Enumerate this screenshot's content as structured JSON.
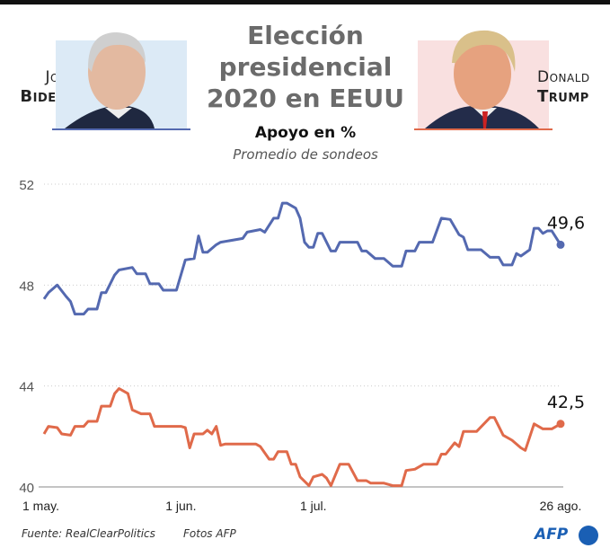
{
  "title_lines": [
    "Elección",
    "presidencial",
    "2020 en EEUU"
  ],
  "subtitle": "Apoyo en %",
  "subtitle2": "Promedio de sondeos",
  "candidates": {
    "biden": {
      "first": "Joe",
      "last": "Biden",
      "color": "#5469b0",
      "photo_bg": "#dceaf6"
    },
    "trump": {
      "first": "Donald",
      "last": "Trump",
      "color": "#e06a4a",
      "photo_bg": "#f9e0e0"
    }
  },
  "footer": {
    "source": "Fuente: RealClearPolitics",
    "photos": "Fotos AFP",
    "logo": "AFP"
  },
  "chart_data": {
    "type": "line",
    "ylim": [
      40,
      52
    ],
    "yticks": [
      "40",
      "44",
      "48",
      "52"
    ],
    "ytick_values": [
      40,
      44,
      48,
      52
    ],
    "xlim": [
      "2020-05-01",
      "2020-08-26"
    ],
    "xticks": [
      {
        "date": "2020-05-01",
        "label": "1 may."
      },
      {
        "date": "2020-06-01",
        "label": "1 jun."
      },
      {
        "date": "2020-07-01",
        "label": "1 jul."
      },
      {
        "date": "2020-08-26",
        "label": "26 ago."
      }
    ],
    "grid": true,
    "series": [
      {
        "key": "biden",
        "color": "#5469b0",
        "end_label": "49,6",
        "points": [
          [
            "2020-05-01",
            47.45
          ],
          [
            "2020-05-02",
            47.7
          ],
          [
            "2020-05-04",
            48.0
          ],
          [
            "2020-05-06",
            47.55
          ],
          [
            "2020-05-07",
            47.35
          ],
          [
            "2020-05-08",
            46.85
          ],
          [
            "2020-05-10",
            46.85
          ],
          [
            "2020-05-11",
            47.05
          ],
          [
            "2020-05-13",
            47.05
          ],
          [
            "2020-05-14",
            47.7
          ],
          [
            "2020-05-15",
            47.7
          ],
          [
            "2020-05-17",
            48.4
          ],
          [
            "2020-05-18",
            48.6
          ],
          [
            "2020-05-21",
            48.7
          ],
          [
            "2020-05-22",
            48.45
          ],
          [
            "2020-05-24",
            48.45
          ],
          [
            "2020-05-25",
            48.05
          ],
          [
            "2020-05-27",
            48.05
          ],
          [
            "2020-05-28",
            47.8
          ],
          [
            "2020-05-31",
            47.8
          ],
          [
            "2020-06-02",
            49.0
          ],
          [
            "2020-06-04",
            49.05
          ],
          [
            "2020-06-05",
            49.95
          ],
          [
            "2020-06-06",
            49.3
          ],
          [
            "2020-06-07",
            49.3
          ],
          [
            "2020-06-09",
            49.6
          ],
          [
            "2020-06-10",
            49.7
          ],
          [
            "2020-06-15",
            49.85
          ],
          [
            "2020-06-16",
            50.1
          ],
          [
            "2020-06-19",
            50.2
          ],
          [
            "2020-06-20",
            50.1
          ],
          [
            "2020-06-22",
            50.65
          ],
          [
            "2020-06-23",
            50.65
          ],
          [
            "2020-06-24",
            51.25
          ],
          [
            "2020-06-25",
            51.25
          ],
          [
            "2020-06-27",
            51.05
          ],
          [
            "2020-06-28",
            50.65
          ],
          [
            "2020-06-29",
            49.7
          ],
          [
            "2020-06-30",
            49.5
          ],
          [
            "2020-07-01",
            49.5
          ],
          [
            "2020-07-02",
            50.05
          ],
          [
            "2020-07-03",
            50.05
          ],
          [
            "2020-07-05",
            49.35
          ],
          [
            "2020-07-06",
            49.35
          ],
          [
            "2020-07-07",
            49.7
          ],
          [
            "2020-07-11",
            49.7
          ],
          [
            "2020-07-12",
            49.35
          ],
          [
            "2020-07-13",
            49.35
          ],
          [
            "2020-07-15",
            49.05
          ],
          [
            "2020-07-17",
            49.05
          ],
          [
            "2020-07-19",
            48.75
          ],
          [
            "2020-07-21",
            48.75
          ],
          [
            "2020-07-22",
            49.35
          ],
          [
            "2020-07-24",
            49.35
          ],
          [
            "2020-07-25",
            49.7
          ],
          [
            "2020-07-28",
            49.7
          ],
          [
            "2020-07-30",
            50.65
          ],
          [
            "2020-08-01",
            50.6
          ],
          [
            "2020-08-03",
            50.0
          ],
          [
            "2020-08-04",
            49.9
          ],
          [
            "2020-08-05",
            49.4
          ],
          [
            "2020-08-08",
            49.4
          ],
          [
            "2020-08-10",
            49.1
          ],
          [
            "2020-08-12",
            49.1
          ],
          [
            "2020-08-13",
            48.8
          ],
          [
            "2020-08-15",
            48.8
          ],
          [
            "2020-08-16",
            49.25
          ],
          [
            "2020-08-17",
            49.15
          ],
          [
            "2020-08-19",
            49.4
          ],
          [
            "2020-08-20",
            50.25
          ],
          [
            "2020-08-21",
            50.25
          ],
          [
            "2020-08-22",
            50.05
          ],
          [
            "2020-08-23",
            50.15
          ],
          [
            "2020-08-24",
            50.15
          ],
          [
            "2020-08-26",
            49.6
          ]
        ]
      },
      {
        "key": "trump",
        "color": "#e06a4a",
        "end_label": "42,5",
        "points": [
          [
            "2020-05-01",
            42.1
          ],
          [
            "2020-05-02",
            42.4
          ],
          [
            "2020-05-04",
            42.35
          ],
          [
            "2020-05-05",
            42.1
          ],
          [
            "2020-05-07",
            42.05
          ],
          [
            "2020-05-08",
            42.4
          ],
          [
            "2020-05-10",
            42.4
          ],
          [
            "2020-05-11",
            42.6
          ],
          [
            "2020-05-13",
            42.6
          ],
          [
            "2020-05-14",
            43.2
          ],
          [
            "2020-05-16",
            43.2
          ],
          [
            "2020-05-17",
            43.7
          ],
          [
            "2020-05-18",
            43.9
          ],
          [
            "2020-05-20",
            43.7
          ],
          [
            "2020-05-21",
            43.05
          ],
          [
            "2020-05-23",
            42.9
          ],
          [
            "2020-05-25",
            42.9
          ],
          [
            "2020-05-26",
            42.4
          ],
          [
            "2020-06-01",
            42.4
          ],
          [
            "2020-06-02",
            42.35
          ],
          [
            "2020-06-03",
            41.55
          ],
          [
            "2020-06-04",
            42.1
          ],
          [
            "2020-06-06",
            42.1
          ],
          [
            "2020-06-07",
            42.25
          ],
          [
            "2020-06-08",
            42.1
          ],
          [
            "2020-06-09",
            42.4
          ],
          [
            "2020-06-10",
            41.65
          ],
          [
            "2020-06-11",
            41.7
          ],
          [
            "2020-06-18",
            41.7
          ],
          [
            "2020-06-19",
            41.6
          ],
          [
            "2020-06-21",
            41.1
          ],
          [
            "2020-06-22",
            41.1
          ],
          [
            "2020-06-23",
            41.4
          ],
          [
            "2020-06-25",
            41.4
          ],
          [
            "2020-06-26",
            40.9
          ],
          [
            "2020-06-27",
            40.9
          ],
          [
            "2020-06-28",
            40.4
          ],
          [
            "2020-06-30",
            40.05
          ],
          [
            "2020-07-01",
            40.4
          ],
          [
            "2020-07-03",
            40.5
          ],
          [
            "2020-07-04",
            40.35
          ],
          [
            "2020-07-05",
            40.05
          ],
          [
            "2020-07-07",
            40.9
          ],
          [
            "2020-07-09",
            40.9
          ],
          [
            "2020-07-11",
            40.25
          ],
          [
            "2020-07-13",
            40.25
          ],
          [
            "2020-07-14",
            40.15
          ],
          [
            "2020-07-17",
            40.15
          ],
          [
            "2020-07-19",
            40.05
          ],
          [
            "2020-07-21",
            40.05
          ],
          [
            "2020-07-22",
            40.65
          ],
          [
            "2020-07-24",
            40.7
          ],
          [
            "2020-07-26",
            40.9
          ],
          [
            "2020-07-29",
            40.9
          ],
          [
            "2020-07-30",
            41.3
          ],
          [
            "2020-07-31",
            41.3
          ],
          [
            "2020-08-02",
            41.75
          ],
          [
            "2020-08-03",
            41.6
          ],
          [
            "2020-08-04",
            42.2
          ],
          [
            "2020-08-07",
            42.2
          ],
          [
            "2020-08-10",
            42.75
          ],
          [
            "2020-08-11",
            42.75
          ],
          [
            "2020-08-13",
            42.05
          ],
          [
            "2020-08-15",
            41.85
          ],
          [
            "2020-08-17",
            41.55
          ],
          [
            "2020-08-18",
            41.45
          ],
          [
            "2020-08-20",
            42.5
          ],
          [
            "2020-08-22",
            42.3
          ],
          [
            "2020-08-24",
            42.3
          ],
          [
            "2020-08-26",
            42.5
          ]
        ]
      }
    ]
  }
}
